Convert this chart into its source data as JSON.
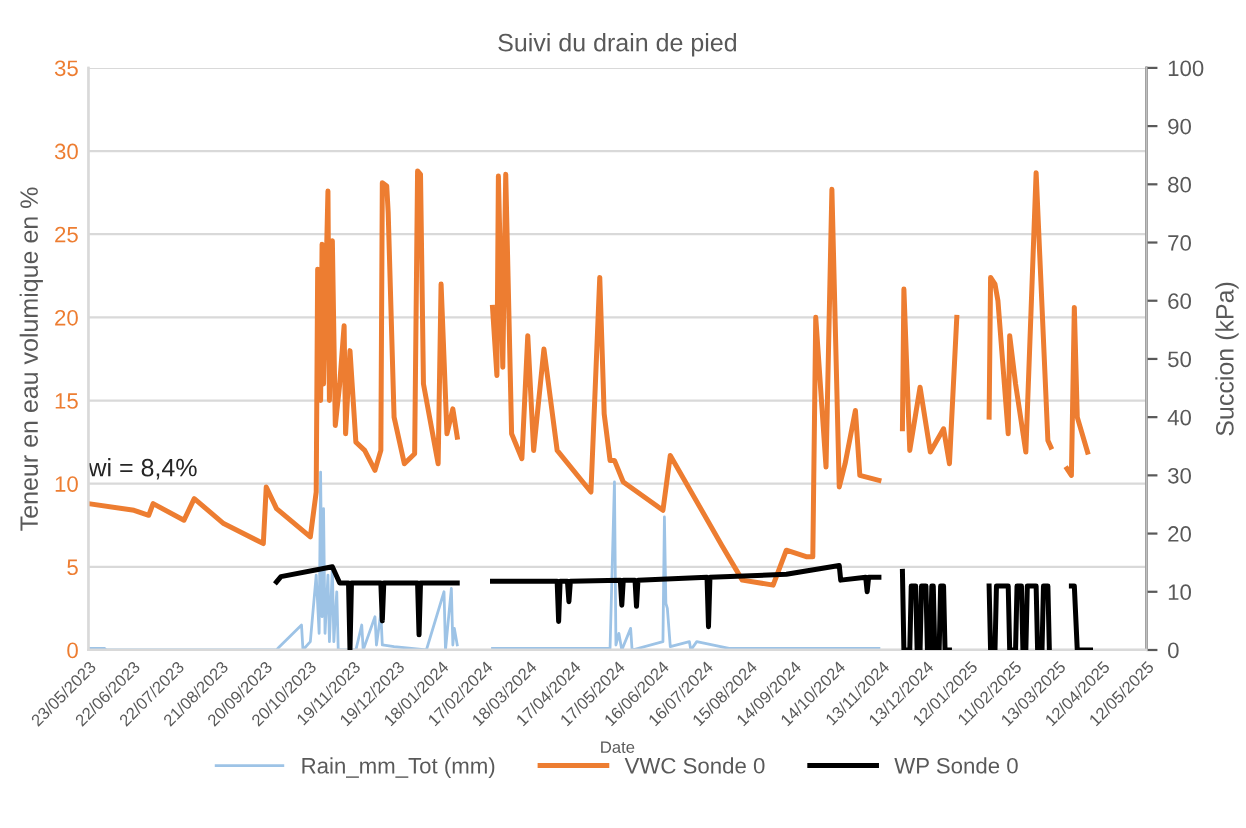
{
  "chart_data": {
    "type": "line",
    "title": "Suivi du drain de pied",
    "xlabel": "Date",
    "ylabel": "Teneur en eau volumique en %",
    "y2label": "Succion (kPa)",
    "xlim": [
      "2023-05-23",
      "2025-05-12"
    ],
    "ylim": [
      0,
      35
    ],
    "yticks": [
      0,
      5,
      10,
      15,
      20,
      25,
      30,
      35
    ],
    "y2lim": [
      0,
      100
    ],
    "y2ticks": [
      0,
      10,
      20,
      30,
      40,
      50,
      60,
      70,
      80,
      90,
      100
    ],
    "xticks": [
      {
        "value": "2023-05-23",
        "label": "23/05/2023"
      },
      {
        "value": "2023-06-22",
        "label": "22/06/2023"
      },
      {
        "value": "2023-07-22",
        "label": "22/07/2023"
      },
      {
        "value": "2023-08-21",
        "label": "21/08/2023"
      },
      {
        "value": "2023-09-20",
        "label": "20/09/2023"
      },
      {
        "value": "2023-10-20",
        "label": "20/10/2023"
      },
      {
        "value": "2023-11-19",
        "label": "19/11/2023"
      },
      {
        "value": "2023-12-19",
        "label": "19/12/2023"
      },
      {
        "value": "2024-01-18",
        "label": "18/01/2024"
      },
      {
        "value": "2024-02-17",
        "label": "17/02/2024"
      },
      {
        "value": "2024-03-18",
        "label": "18/03/2024"
      },
      {
        "value": "2024-04-17",
        "label": "17/04/2024"
      },
      {
        "value": "2024-05-17",
        "label": "17/05/2024"
      },
      {
        "value": "2024-06-16",
        "label": "16/06/2024"
      },
      {
        "value": "2024-07-16",
        "label": "16/07/2024"
      },
      {
        "value": "2024-08-15",
        "label": "15/08/2024"
      },
      {
        "value": "2024-09-14",
        "label": "14/09/2024"
      },
      {
        "value": "2024-10-14",
        "label": "14/10/2024"
      },
      {
        "value": "2024-11-13",
        "label": "13/11/2024"
      },
      {
        "value": "2024-12-13",
        "label": "13/12/2024"
      },
      {
        "value": "2025-01-12",
        "label": "12/01/2025"
      },
      {
        "value": "2025-02-11",
        "label": "11/02/2025"
      },
      {
        "value": "2025-03-13",
        "label": "13/03/2025"
      },
      {
        "value": "2025-04-12",
        "label": "12/04/2025"
      },
      {
        "value": "2025-05-12",
        "label": "12/05/2025"
      }
    ],
    "grid": "y",
    "legend": "bottom",
    "marker": "none",
    "line_style": "solid",
    "annotations": [
      {
        "text": "wi = 8,4%",
        "x": "2023-05-23",
        "y": 8.8
      }
    ],
    "series": [
      {
        "name": "Rain_mm_Tot (mm)",
        "color": "#9dc3e6",
        "x": [
          "2023-05-23",
          "2023-06-03",
          "2023-06-04",
          "2023-09-28",
          "2023-09-30",
          "2023-10-15",
          "2023-10-16",
          "2023-10-21",
          "2023-10-25",
          "2023-10-27",
          "2023-10-28",
          "2023-10-29",
          "2023-10-30",
          "2023-10-31",
          "2023-11-02",
          "2023-11-03",
          "2023-11-05",
          "2023-11-06",
          "2023-11-08",
          "2023-11-09",
          "2023-11-21",
          "2023-11-25",
          "2023-11-26",
          "2023-12-04",
          "2023-12-05",
          "2023-12-08",
          "2023-12-09",
          "2023-12-17",
          "2024-01-08",
          "2024-01-20",
          "2024-01-21",
          "2024-01-25",
          "2024-01-26",
          "2024-01-27",
          "2024-01-29",
          "2024-02-10",
          "2024-02-22",
          "2024-05-12",
          "2024-05-15",
          "2024-05-16",
          "2024-05-18",
          "2024-05-20",
          "2024-05-26",
          "2024-05-27",
          "2024-06-17",
          "2024-06-18",
          "2024-06-19",
          "2024-06-20",
          "2024-06-22",
          "2024-07-05",
          "2024-07-06",
          "2024-07-10",
          "2024-08-01",
          "2024-11-11"
        ],
        "values": [
          0.1,
          0.1,
          0,
          0,
          0.2,
          1.5,
          0,
          0.5,
          4.5,
          1,
          10.7,
          2,
          8.5,
          1,
          4.5,
          0.5,
          5,
          0.5,
          3.5,
          0,
          0,
          1.5,
          0,
          2,
          0.3,
          2.2,
          0.3,
          0.2,
          0,
          3.5,
          0,
          3.7,
          0.3,
          1.3,
          0.3,
          null,
          0.1,
          0.1,
          10.1,
          0.3,
          1,
          0,
          1.3,
          0,
          0.5,
          8,
          2.8,
          2.5,
          0.2,
          0.5,
          0,
          0.5,
          0.1,
          0.1
        ]
      },
      {
        "name": "VWC Sonde 0",
        "color": "#ed7d31",
        "x": [
          "2023-05-23",
          "2023-06-23",
          "2023-07-03",
          "2023-07-06",
          "2023-07-27",
          "2023-08-03",
          "2023-08-23",
          "2023-09-19",
          "2023-09-21",
          "2023-09-28",
          "2023-10-21",
          "2023-10-25",
          "2023-10-26",
          "2023-10-28",
          "2023-10-29",
          "2023-10-30",
          "2023-11-02",
          "2023-11-03",
          "2023-11-05",
          "2023-11-07",
          "2023-11-10",
          "2023-11-13",
          "2023-11-14",
          "2023-11-17",
          "2023-11-21",
          "2023-11-27",
          "2023-12-04",
          "2023-12-08",
          "2023-12-09",
          "2023-12-12",
          "2023-12-13",
          "2023-12-17",
          "2023-12-24",
          "2023-12-31",
          "2024-01-02",
          "2024-01-04",
          "2024-01-06",
          "2024-01-16",
          "2024-01-18",
          "2024-01-22",
          "2024-01-26",
          "2024-01-29",
          "2024-02-10",
          "2024-02-22",
          "2024-02-25",
          "2024-02-26",
          "2024-02-29",
          "2024-03-02",
          "2024-03-06",
          "2024-03-13",
          "2024-03-17",
          "2024-03-21",
          "2024-03-28",
          "2024-04-06",
          "2024-04-29",
          "2024-05-05",
          "2024-05-08",
          "2024-05-12",
          "2024-05-15",
          "2024-05-21",
          "2024-06-17",
          "2024-06-22",
          "2024-07-27",
          "2024-08-10",
          "2024-08-31",
          "2024-09-09",
          "2024-09-23",
          "2024-09-27",
          "2024-09-29",
          "2024-10-06",
          "2024-10-10",
          "2024-10-15",
          "2024-10-19",
          "2024-10-26",
          "2024-10-29",
          "2024-11-11",
          "2024-11-20",
          "2024-11-27",
          "2024-11-28",
          "2024-12-02",
          "2024-12-09",
          "2024-12-16",
          "2024-12-25",
          "2024-12-29",
          "2025-01-03",
          "2025-01-15",
          "2025-01-25",
          "2025-01-26",
          "2025-01-29",
          "2025-01-31",
          "2025-02-07",
          "2025-02-08",
          "2025-02-12",
          "2025-02-19",
          "2025-02-26",
          "2025-03-06",
          "2025-03-08",
          "2025-03-14",
          "2025-03-19",
          "2025-03-22",
          "2025-03-24",
          "2025-03-26",
          "2025-04-02"
        ],
        "values": [
          8.8,
          8.4,
          8.1,
          8.8,
          7.8,
          9.1,
          7.6,
          6.4,
          9.8,
          8.5,
          6.8,
          9.5,
          22.9,
          15,
          24.4,
          16,
          27.6,
          15,
          24.6,
          13.5,
          16,
          19.5,
          13,
          18.0,
          12.5,
          12,
          10.8,
          12,
          28.1,
          27.9,
          26.3,
          14,
          11.2,
          11.8,
          28.8,
          28.6,
          16,
          11.2,
          22.0,
          13,
          14.5,
          12.8,
          null,
          20.6,
          16.5,
          28.5,
          17,
          28.6,
          13,
          11.5,
          18.9,
          12,
          18.1,
          12,
          9.5,
          22.4,
          14.2,
          11.4,
          11.4,
          10.1,
          8.4,
          11.7,
          6.3,
          4.2,
          3.9,
          6.0,
          5.6,
          5.6,
          20,
          11,
          27.7,
          9.8,
          11.2,
          14.4,
          10.5,
          10.2,
          null,
          13.3,
          21.7,
          12,
          15.8,
          11.9,
          13.3,
          11.2,
          20,
          null,
          14,
          22.4,
          22,
          21,
          13,
          18.9,
          16,
          11.9,
          28.7,
          12.6,
          12.2,
          null,
          10.9,
          10.5,
          20.6,
          14,
          11.9
        ]
      },
      {
        "name": "WP Sonde 0",
        "color": "#000000",
        "axis": "y2",
        "x": [
          "2023-09-28",
          "2023-10-01",
          "2023-11-05",
          "2023-11-10",
          "2023-11-16",
          "2023-11-17",
          "2023-11-18",
          "2023-12-08",
          "2023-12-09",
          "2023-12-10",
          "2024-01-02",
          "2024-01-03",
          "2024-01-04",
          "2024-01-29",
          "2024-02-10",
          "2024-02-22",
          "2024-04-06",
          "2024-04-07",
          "2024-04-08",
          "2024-04-13",
          "2024-04-14",
          "2024-04-15",
          "2024-05-19",
          "2024-05-20",
          "2024-05-21",
          "2024-05-29",
          "2024-05-30",
          "2024-05-31",
          "2024-07-17",
          "2024-07-18",
          "2024-07-19",
          "2024-09-09",
          "2024-10-15",
          "2024-10-16",
          "2024-11-02",
          "2024-11-03",
          "2024-11-04",
          "2024-11-11",
          "2024-11-20",
          "2024-11-27",
          "2024-11-28",
          "2024-12-02",
          "2024-12-03",
          "2024-12-06",
          "2024-12-07",
          "2024-12-09",
          "2024-12-10",
          "2024-12-13",
          "2024-12-14",
          "2024-12-16",
          "2024-12-17",
          "2024-12-18",
          "2024-12-19",
          "2024-12-22",
          "2024-12-23",
          "2024-12-25",
          "2024-12-26",
          "2024-12-29",
          "2025-01-15",
          "2025-01-25",
          "2025-01-26",
          "2025-01-29",
          "2025-01-30",
          "2025-02-07",
          "2025-02-08",
          "2025-02-12",
          "2025-02-13",
          "2025-02-16",
          "2025-02-17",
          "2025-02-19",
          "2025-02-20",
          "2025-02-26",
          "2025-02-27",
          "2025-03-02",
          "2025-03-03",
          "2025-03-06",
          "2025-03-07",
          "2025-03-14",
          "2025-03-22",
          "2025-03-24",
          "2025-03-26",
          "2025-04-04"
        ],
        "values": [
          11.7,
          12.6,
          14.3,
          11.5,
          11.5,
          0,
          11.5,
          11.5,
          5,
          11.5,
          11.5,
          2.6,
          11.5,
          11.5,
          null,
          11.8,
          11.8,
          4.9,
          11.8,
          11.8,
          8.3,
          11.8,
          12,
          7.7,
          12,
          12,
          7.5,
          12,
          12.5,
          4,
          12.5,
          13,
          14.5,
          12,
          12.5,
          10,
          12.5,
          12.5,
          null,
          13.5,
          0,
          0,
          11,
          11,
          0,
          0,
          11,
          11,
          0,
          0,
          11,
          11,
          0,
          0,
          11,
          11,
          0,
          0,
          null,
          11,
          0,
          0,
          11,
          11,
          0,
          0,
          11,
          11,
          0,
          0,
          11,
          11,
          0,
          0,
          11,
          11,
          0,
          null,
          11,
          11,
          0,
          0
        ]
      }
    ]
  }
}
